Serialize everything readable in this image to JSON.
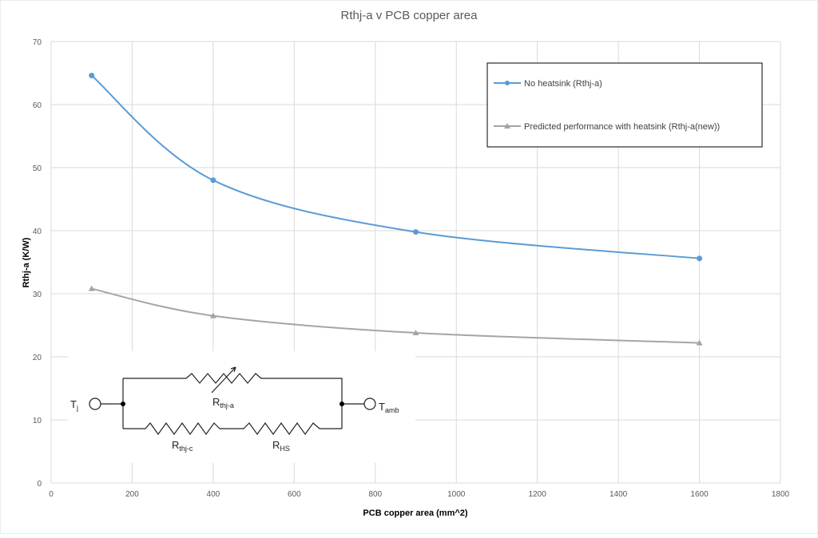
{
  "chart_data": {
    "type": "line",
    "title": "Rthj-a v PCB copper area",
    "xlabel": "PCB copper area (mm^2)",
    "ylabel": "Rthj-a (K/W)",
    "xlim": [
      0,
      1800
    ],
    "ylim": [
      0,
      70
    ],
    "xticks": [
      0,
      200,
      400,
      600,
      800,
      1000,
      1200,
      1400,
      1600,
      1800
    ],
    "yticks": [
      0,
      10,
      20,
      30,
      40,
      50,
      60,
      70
    ],
    "grid": true,
    "smooth": true,
    "legend_position": "top-right",
    "x": [
      100,
      400,
      900,
      1600
    ],
    "series": [
      {
        "name": "No heatsink (Rthj-a)",
        "values": [
          64.6,
          48.0,
          39.8,
          35.6
        ],
        "color": "#5b9bd5",
        "marker": "circle"
      },
      {
        "name": "Predicted performance with heatsink (Rthj-a(new))",
        "values": [
          30.8,
          26.5,
          23.8,
          22.2
        ],
        "color": "#a5a5a5",
        "marker": "triangle"
      }
    ]
  },
  "circuit": {
    "node_left": "T",
    "node_left_sub": "j",
    "node_right": "T",
    "node_right_sub": "amb",
    "r_top": "R",
    "r_top_sub": "thj-a",
    "r_bottom_1": "R",
    "r_bottom_1_sub": "thj-c",
    "r_bottom_2": "R",
    "r_bottom_2_sub": "HS"
  }
}
